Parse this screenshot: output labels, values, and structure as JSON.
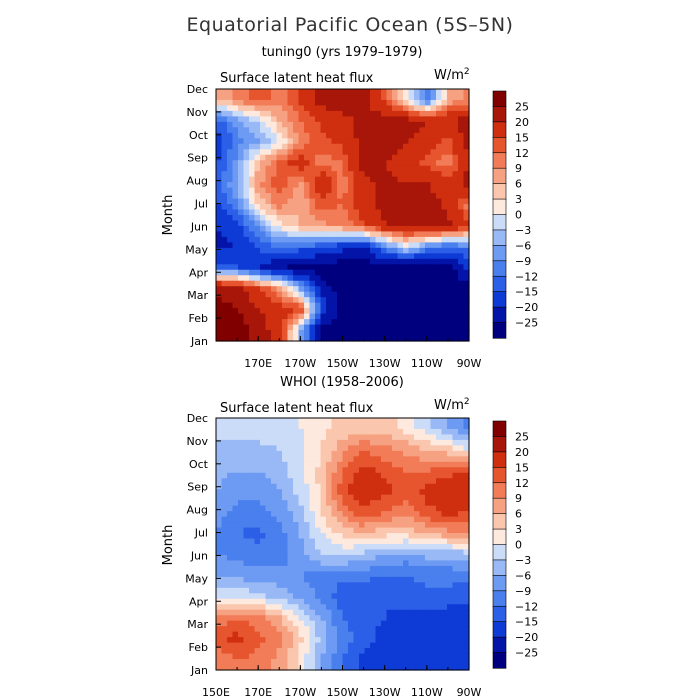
{
  "title": "Equatorial Pacific Ocean (5S–5N)",
  "colors": {
    "bins": [
      "#00007f",
      "#0514a8",
      "#0e3ad6",
      "#2c5fe8",
      "#4a7fee",
      "#6d9af2",
      "#98b9f6",
      "#cbdcf9",
      "#fde9dd",
      "#fac6ad",
      "#f6a282",
      "#f17c57",
      "#e6552e",
      "#cf2f0e",
      "#a8160a",
      "#800000"
    ]
  },
  "chart_data": [
    {
      "type": "heatmap",
      "title": "tuning0 (yrs 1979–1979)",
      "variable": "Surface latent heat flux",
      "units": "W/m",
      "units_exp": "2",
      "ylabel": "Month",
      "y_categories": [
        "Jan",
        "Feb",
        "Mar",
        "Apr",
        "May",
        "Jun",
        "Jul",
        "Aug",
        "Sep",
        "Oct",
        "Nov",
        "Dec"
      ],
      "x_tick_labels": [
        "170E",
        "170W",
        "150W",
        "130W",
        "110W",
        "90W"
      ],
      "x_range_lon": [
        150,
        270
      ],
      "x_tick_lons": [
        170,
        190,
        210,
        230,
        250,
        270
      ],
      "colorbar_labels": [
        "25",
        "20",
        "15",
        "12",
        "9",
        "6",
        "3",
        "0",
        "−3",
        "−6",
        "−9",
        "−12",
        "−15",
        "−20",
        "−25"
      ],
      "levels": [
        -25,
        -20,
        -15,
        -12,
        -9,
        -6,
        -3,
        0,
        3,
        6,
        9,
        12,
        15,
        20,
        25
      ],
      "grid_lons": [
        150,
        160,
        170,
        180,
        190,
        200,
        210,
        220,
        230,
        240,
        250,
        260,
        270
      ],
      "values": [
        [
          28,
          28,
          22,
          18,
          -5,
          -28,
          -28,
          -28,
          -28,
          -28,
          -28,
          -28,
          -28
        ],
        [
          27,
          25,
          20,
          18,
          15,
          -15,
          -28,
          -28,
          -28,
          -28,
          -28,
          -28,
          -28
        ],
        [
          24,
          22,
          16,
          8,
          -6,
          -22,
          -28,
          -28,
          -28,
          -28,
          -28,
          -28,
          -28
        ],
        [
          -12,
          -15,
          -20,
          -24,
          -28,
          -28,
          -28,
          -28,
          -28,
          -28,
          -28,
          -28,
          -18
        ],
        [
          -22,
          -20,
          -14,
          -12,
          -12,
          -14,
          -18,
          -20,
          -10,
          0,
          -8,
          -12,
          -10
        ],
        [
          -20,
          -16,
          -8,
          2,
          6,
          8,
          10,
          14,
          20,
          22,
          24,
          22,
          16
        ],
        [
          -16,
          -10,
          4,
          10,
          6,
          14,
          12,
          18,
          22,
          22,
          24,
          18,
          10
        ],
        [
          -14,
          -6,
          8,
          14,
          8,
          20,
          10,
          18,
          22,
          20,
          20,
          16,
          22
        ],
        [
          -16,
          -8,
          6,
          12,
          18,
          10,
          12,
          22,
          20,
          16,
          14,
          10,
          20
        ],
        [
          -18,
          -10,
          -6,
          0,
          10,
          14,
          16,
          22,
          24,
          20,
          18,
          14,
          22
        ],
        [
          -14,
          -8,
          -2,
          6,
          12,
          16,
          18,
          22,
          22,
          22,
          20,
          20,
          22
        ],
        [
          6,
          10,
          14,
          10,
          16,
          22,
          24,
          22,
          14,
          2,
          -12,
          6,
          10
        ]
      ]
    },
    {
      "type": "heatmap",
      "title": "WHOI (1958–2006)",
      "variable": "Surface latent heat flux",
      "units": "W/m",
      "units_exp": "2",
      "ylabel": "Month",
      "y_categories": [
        "Jan",
        "Feb",
        "Mar",
        "Apr",
        "May",
        "Jun",
        "Jul",
        "Aug",
        "Sep",
        "Oct",
        "Nov",
        "Dec"
      ],
      "x_tick_labels": [
        "150E",
        "170E",
        "170W",
        "150W",
        "130W",
        "110W",
        "90W"
      ],
      "x_range_lon": [
        150,
        270
      ],
      "x_tick_lons": [
        150,
        170,
        190,
        210,
        230,
        250,
        270
      ],
      "colorbar_labels": [
        "25",
        "20",
        "15",
        "12",
        "9",
        "6",
        "3",
        "0",
        "−3",
        "−6",
        "−9",
        "−12",
        "−15",
        "−20",
        "−25"
      ],
      "levels": [
        -25,
        -20,
        -15,
        -12,
        -9,
        -6,
        -3,
        0,
        3,
        6,
        9,
        12,
        15,
        20,
        25
      ],
      "grid_lons": [
        150,
        160,
        170,
        180,
        190,
        200,
        210,
        220,
        230,
        240,
        250,
        260,
        270
      ],
      "values": [
        [
          10,
          12,
          11,
          8,
          2,
          -6,
          -12,
          -16,
          -17,
          -18,
          -18,
          -20,
          -20
        ],
        [
          14,
          16,
          13,
          10,
          4,
          -4,
          -10,
          -14,
          -16,
          -18,
          -18,
          -19,
          -20
        ],
        [
          10,
          12,
          10,
          6,
          0,
          -6,
          -12,
          -14,
          -15,
          -16,
          -16,
          -17,
          -18
        ],
        [
          -2,
          0,
          -2,
          -4,
          -7,
          -10,
          -14,
          -15,
          -15,
          -14,
          -13,
          -13,
          -14
        ],
        [
          -6,
          -7,
          -8,
          -8,
          -9,
          -10,
          -11,
          -11,
          -12,
          -12,
          -11,
          -11,
          -11
        ],
        [
          -9,
          -10,
          -11,
          -11,
          -7,
          -3,
          -2,
          -4,
          -6,
          -7,
          -5,
          -5,
          -4
        ],
        [
          -9,
          -12,
          -13,
          -10,
          -6,
          0,
          4,
          6,
          4,
          4,
          6,
          8,
          8
        ],
        [
          -8,
          -10,
          -10,
          -8,
          -4,
          3,
          10,
          14,
          12,
          10,
          14,
          16,
          15
        ],
        [
          -6,
          -8,
          -8,
          -6,
          -2,
          4,
          14,
          18,
          16,
          14,
          16,
          18,
          20
        ],
        [
          -5,
          -6,
          -6,
          -4,
          -1,
          4,
          12,
          16,
          14,
          12,
          12,
          14,
          14
        ],
        [
          -4,
          -4,
          -4,
          -3,
          -1,
          3,
          8,
          12,
          10,
          8,
          6,
          4,
          0
        ],
        [
          -2,
          -2,
          -1,
          -1,
          0,
          2,
          4,
          5,
          4,
          2,
          -2,
          -6,
          -10
        ]
      ]
    }
  ]
}
